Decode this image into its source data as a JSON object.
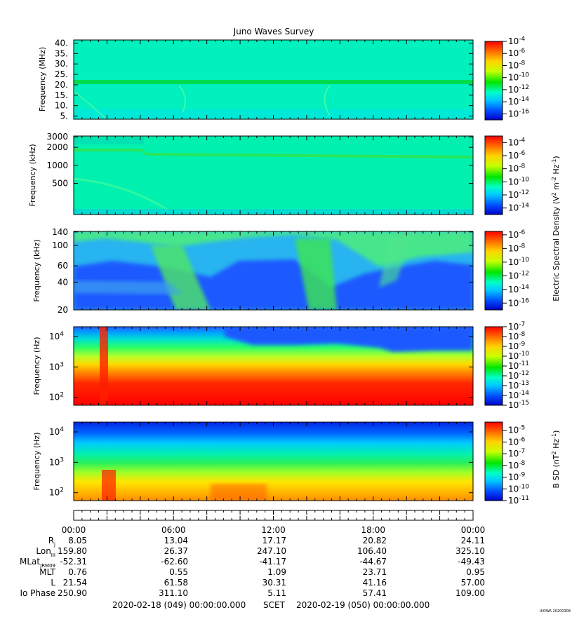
{
  "chart_data": {
    "type": "heatmap",
    "title": "Juno Waves Survey",
    "panels": [
      {
        "id": "p1",
        "ylabel": "Frequency (MHz)",
        "yscale": "linear",
        "ylim": [
          3.5,
          41.5
        ],
        "yticks": [
          {
            "v": 40,
            "label": "40."
          },
          {
            "v": 35,
            "label": "35."
          },
          {
            "v": 30,
            "label": "30."
          },
          {
            "v": 25,
            "label": "25."
          },
          {
            "v": 20,
            "label": "20."
          },
          {
            "v": 15,
            "label": "15."
          },
          {
            "v": 10,
            "label": "10."
          },
          {
            "v": 5,
            "label": "5."
          }
        ],
        "colorbar": {
          "min_exp": -17,
          "max_exp": -4,
          "ticks": [
            {
              "e": -4,
              "t": "10-4"
            },
            {
              "e": -6,
              "t": "10-6"
            },
            {
              "e": -8,
              "t": "10-8"
            },
            {
              "e": -10,
              "t": "10-10"
            },
            {
              "e": -12,
              "t": "10-12"
            },
            {
              "e": -14,
              "t": "10-14"
            },
            {
              "e": -16,
              "t": "10-16"
            }
          ]
        }
      },
      {
        "id": "p2",
        "ylabel": "Frequency (kHz)",
        "yscale": "log",
        "ylim": [
          150,
          3100
        ],
        "yticks": [
          {
            "v": 3000,
            "label": "3000"
          },
          {
            "v": 2000,
            "label": "2000"
          },
          {
            "v": 1000,
            "label": "1000"
          },
          {
            "v": 500,
            "label": "500"
          }
        ],
        "colorbar": {
          "min_exp": -15,
          "max_exp": -3,
          "ticks": [
            {
              "e": -4,
              "t": "10-4"
            },
            {
              "e": -6,
              "t": "10-6"
            },
            {
              "e": -8,
              "t": "10-8"
            },
            {
              "e": -10,
              "t": "10-10"
            },
            {
              "e": -12,
              "t": "10-12"
            },
            {
              "e": -14,
              "t": "10-14"
            }
          ]
        }
      },
      {
        "id": "p3",
        "ylabel": "Frequency (kHz)",
        "yscale": "log",
        "ylim": [
          20,
          142
        ],
        "yticks": [
          {
            "v": 140,
            "label": "140"
          },
          {
            "v": 100,
            "label": "100"
          },
          {
            "v": 60,
            "label": "60"
          },
          {
            "v": 40,
            "label": "40"
          },
          {
            "v": 20,
            "label": "20"
          }
        ],
        "colorbar": {
          "min_exp": -17,
          "max_exp": -5.5,
          "ticks": [
            {
              "e": -6,
              "t": "10-6"
            },
            {
              "e": -8,
              "t": "10-8"
            },
            {
              "e": -10,
              "t": "10-10"
            },
            {
              "e": -12,
              "t": "10-12"
            },
            {
              "e": -14,
              "t": "10-14"
            },
            {
              "e": -16,
              "t": "10-16"
            }
          ]
        }
      },
      {
        "id": "p4",
        "ylabel": "Frequency (Hz)",
        "yscale": "log",
        "ylim": [
          55,
          21000
        ],
        "yticks": [
          {
            "v": 10000,
            "label": "10",
            "exp": "4"
          },
          {
            "v": 1000,
            "label": "10",
            "exp": "3"
          },
          {
            "v": 100,
            "label": "10",
            "exp": "2"
          }
        ],
        "colorbar": {
          "min_exp": -15,
          "max_exp": -7,
          "ticks": [
            {
              "e": -7,
              "t": "10-7"
            },
            {
              "e": -8,
              "t": "10-8"
            },
            {
              "e": -9,
              "t": "10-9"
            },
            {
              "e": -10,
              "t": "10-10"
            },
            {
              "e": -11,
              "t": "10-11"
            },
            {
              "e": -12,
              "t": "10-12"
            },
            {
              "e": -13,
              "t": "10-13"
            },
            {
              "e": -14,
              "t": "10-14"
            },
            {
              "e": -15,
              "t": "10-15"
            }
          ]
        }
      },
      {
        "id": "p5",
        "ylabel": "Frequency (Hz)",
        "yscale": "log",
        "ylim": [
          55,
          21000
        ],
        "yticks": [
          {
            "v": 10000,
            "label": "10",
            "exp": "4"
          },
          {
            "v": 1000,
            "label": "10",
            "exp": "3"
          },
          {
            "v": 100,
            "label": "10",
            "exp": "2"
          }
        ],
        "colorbar": {
          "min_exp": -11,
          "max_exp": -4.3,
          "ticks": [
            {
              "e": -5,
              "t": "10-5"
            },
            {
              "e": -6,
              "t": "10-6"
            },
            {
              "e": -7,
              "t": "10-7"
            },
            {
              "e": -8,
              "t": "10-8"
            },
            {
              "e": -9,
              "t": "10-9"
            },
            {
              "e": -10,
              "t": "10-10"
            },
            {
              "e": -11,
              "t": "10-11"
            }
          ]
        }
      }
    ],
    "colorbar_labels": {
      "electric": "Electric Spectral Density (V2 m-2 Hz-1)",
      "magnetic": "B SD (nT2 Hz-1)"
    },
    "x_axis": {
      "hours": [
        0,
        6,
        12,
        18,
        24
      ],
      "labels": [
        "00:00",
        "06:00",
        "12:00",
        "18:00",
        "00:00"
      ]
    },
    "ephemeris": [
      {
        "name": "Rj",
        "values": [
          "8.05",
          "13.04",
          "17.17",
          "20.82",
          "24.11"
        ]
      },
      {
        "name": "LonIII",
        "values": [
          "159.80",
          "26.37",
          "247.10",
          "106.40",
          "325.10"
        ]
      },
      {
        "name": "MLatJRM09",
        "values": [
          "-52.31",
          "-62.60",
          "-41.17",
          "-44.67",
          "-49.43"
        ]
      },
      {
        "name": "MLT",
        "values": [
          "0.76",
          "0.55",
          "1.09",
          "23.71",
          "0.95"
        ]
      },
      {
        "name": "L",
        "values": [
          "21.54",
          "61.58",
          "30.31",
          "41.16",
          "57.00"
        ]
      },
      {
        "name": "Io Phase",
        "values": [
          "250.90",
          "311.10",
          "5.11",
          "57.41",
          "109.00"
        ]
      }
    ],
    "footer": {
      "start": "2020-02-18 (049) 00:00:00.000",
      "mid": "SCET",
      "end": "2020-02-19 (050) 00:00:00.000"
    },
    "credit": "UIOWA 20200308"
  }
}
